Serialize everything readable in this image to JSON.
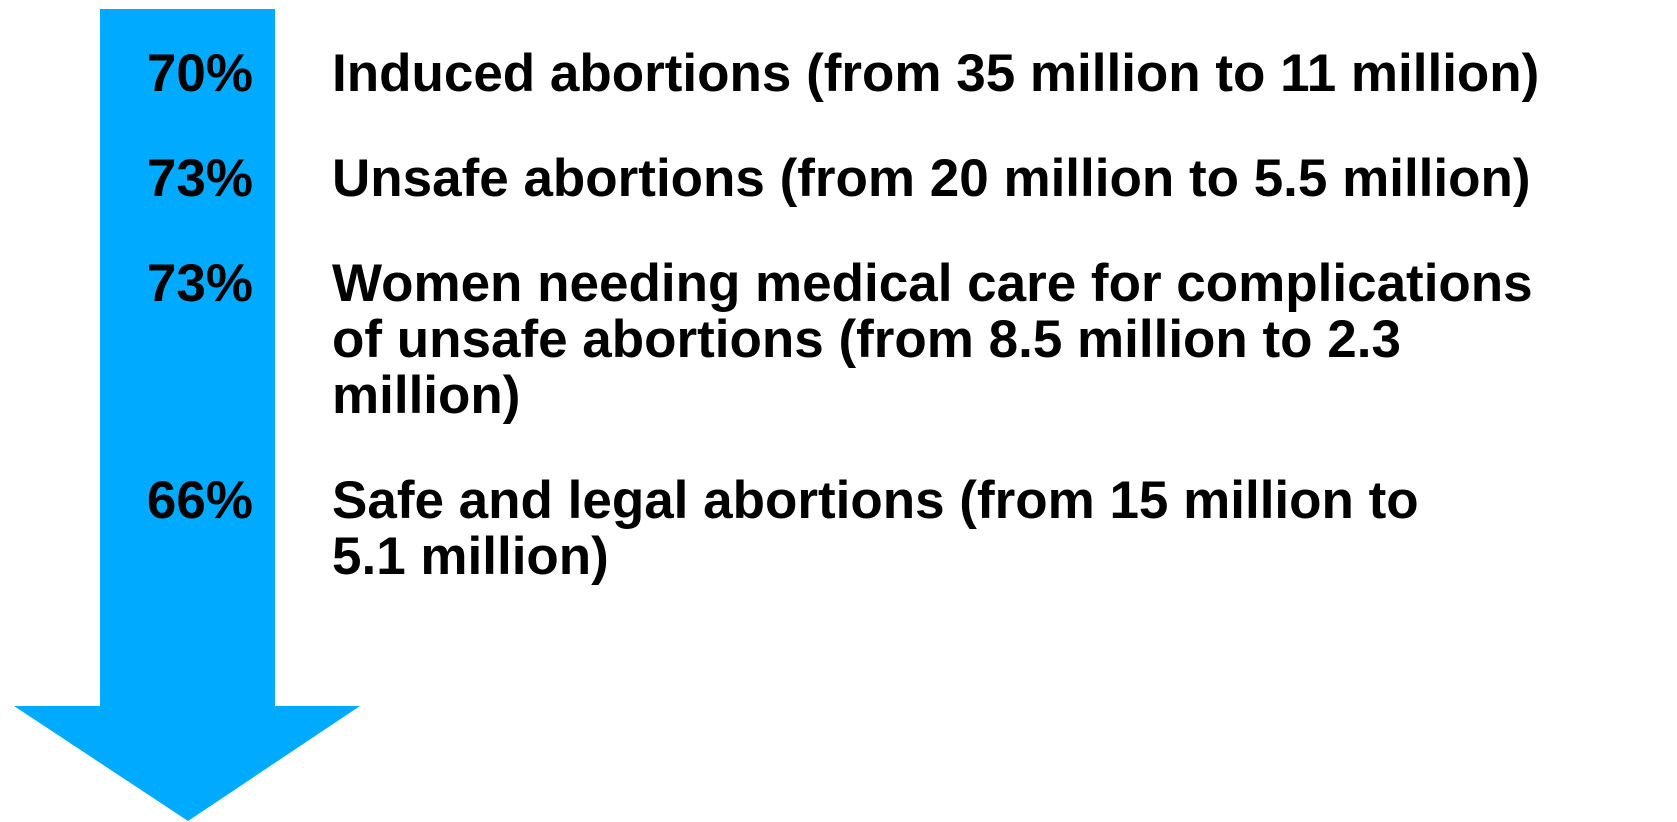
{
  "items": [
    {
      "percent": "70%",
      "lines": [
        "Induced abortions (from 35 million to 11 million)"
      ]
    },
    {
      "percent": "73%",
      "lines": [
        "Unsafe abortions (from 20 million to 5.5 million)"
      ]
    },
    {
      "percent": "73%",
      "lines": [
        "Women needing medical care for complications",
        "of unsafe abortions (from 8.5 million to 2.3",
        "million)"
      ]
    },
    {
      "percent": "66%",
      "lines": [
        "Safe and legal abortions (from 15 million to",
        "5.1 million)"
      ]
    }
  ]
}
